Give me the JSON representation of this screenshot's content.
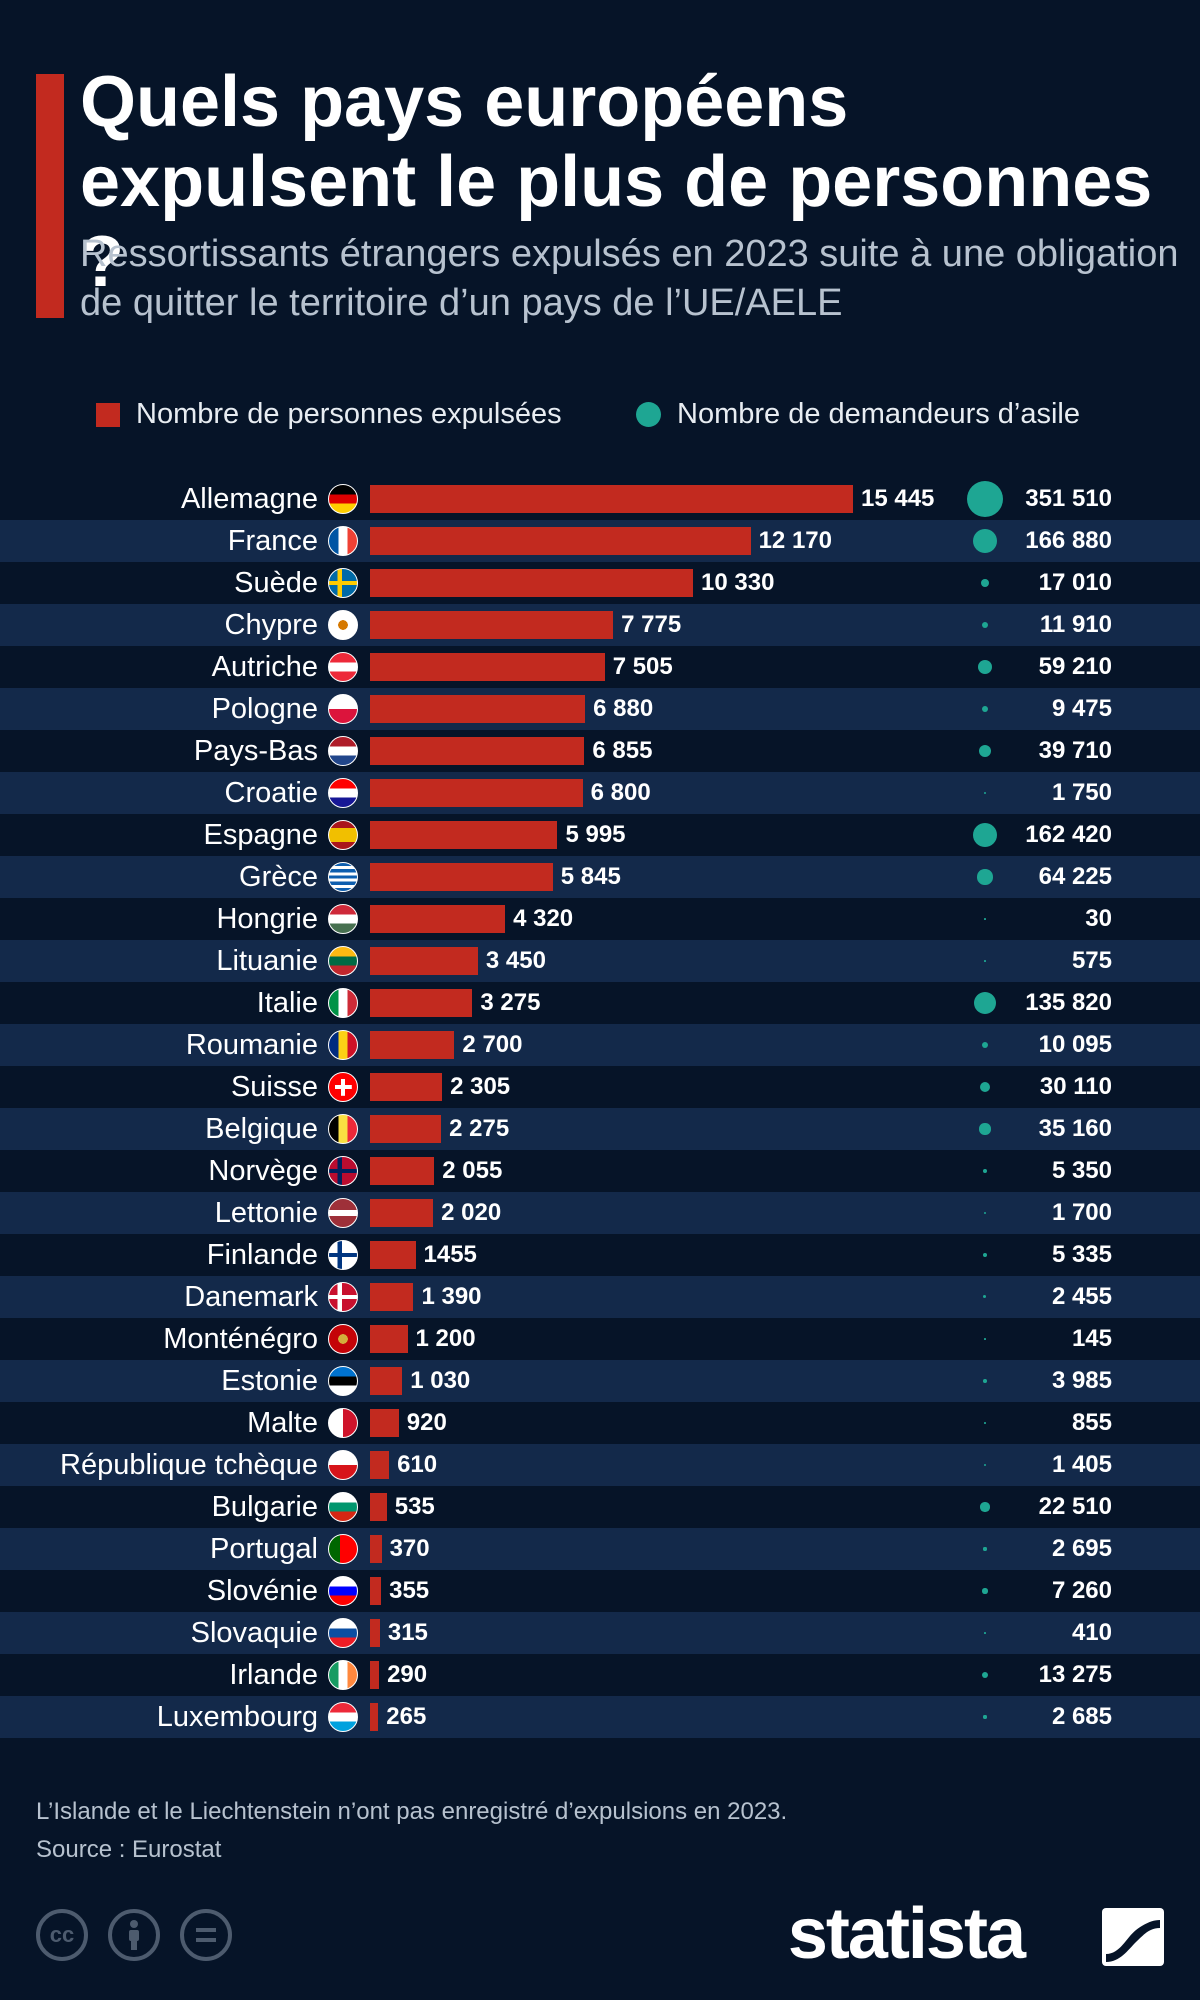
{
  "header": {
    "title": "Quels pays européens expulsent le plus de personnes ?",
    "subtitle": "Ressortissants étrangers expulsés en 2023 suite à une obligation de quitter le territoire d’un pays de l’UE/AELE"
  },
  "colors": {
    "background": "#061428",
    "bar": "#c22a1f",
    "bubble": "#1ea693",
    "row_alt": "#13294a"
  },
  "chart_data": {
    "type": "bar",
    "orientation": "horizontal",
    "title": "Quels pays européens expulsent le plus de personnes ?",
    "subtitle": "Ressortissants étrangers expulsés en 2023 suite à une obligation de quitter le territoire d’un pays de l’UE/AELE",
    "grid": false,
    "legend_position": "top",
    "series": [
      {
        "name": "Nombre de personnes expulsées",
        "mark": "bar",
        "color": "#c22a1f",
        "values": [
          15445,
          12170,
          10330,
          7775,
          7505,
          6880,
          6855,
          6800,
          5995,
          5845,
          4320,
          3450,
          3275,
          2700,
          2305,
          2275,
          2055,
          2020,
          1455,
          1390,
          1200,
          1030,
          920,
          610,
          535,
          370,
          355,
          315,
          290,
          265
        ]
      },
      {
        "name": "Nombre de demandeurs d’asile",
        "mark": "bubble",
        "color": "#1ea693",
        "values": [
          351510,
          166880,
          17010,
          11910,
          59210,
          9475,
          39710,
          1750,
          162420,
          64225,
          30,
          575,
          135820,
          10095,
          30110,
          35160,
          5350,
          1700,
          5335,
          2455,
          145,
          3985,
          855,
          1405,
          22510,
          2695,
          7260,
          410,
          13275,
          2685
        ]
      }
    ],
    "rows": [
      {
        "country": "Allemagne",
        "flag": "de",
        "expelled": "15 445",
        "asylum": "351 510"
      },
      {
        "country": "France",
        "flag": "fr",
        "expelled": "12 170",
        "asylum": "166 880"
      },
      {
        "country": "Suède",
        "flag": "se",
        "expelled": "10 330",
        "asylum": "17 010"
      },
      {
        "country": "Chypre",
        "flag": "cy",
        "expelled": "7 775",
        "asylum": "11 910"
      },
      {
        "country": "Autriche",
        "flag": "at",
        "expelled": "7 505",
        "asylum": "59 210"
      },
      {
        "country": "Pologne",
        "flag": "pl",
        "expelled": "6 880",
        "asylum": "9 475"
      },
      {
        "country": "Pays-Bas",
        "flag": "nl",
        "expelled": "6 855",
        "asylum": "39 710"
      },
      {
        "country": "Croatie",
        "flag": "hr",
        "expelled": "6 800",
        "asylum": "1 750"
      },
      {
        "country": "Espagne",
        "flag": "es",
        "expelled": "5 995",
        "asylum": "162 420"
      },
      {
        "country": "Grèce",
        "flag": "gr",
        "expelled": "5 845",
        "asylum": "64 225"
      },
      {
        "country": "Hongrie",
        "flag": "hu",
        "expelled": "4 320",
        "asylum": "30"
      },
      {
        "country": "Lituanie",
        "flag": "lt",
        "expelled": "3 450",
        "asylum": "575"
      },
      {
        "country": "Italie",
        "flag": "it",
        "expelled": "3 275",
        "asylum": "135 820"
      },
      {
        "country": "Roumanie",
        "flag": "ro",
        "expelled": "2 700",
        "asylum": "10 095"
      },
      {
        "country": "Suisse",
        "flag": "ch",
        "expelled": "2 305",
        "asylum": "30 110"
      },
      {
        "country": "Belgique",
        "flag": "be",
        "expelled": "2 275",
        "asylum": "35 160"
      },
      {
        "country": "Norvège",
        "flag": "no",
        "expelled": "2 055",
        "asylum": "5 350"
      },
      {
        "country": "Lettonie",
        "flag": "lv",
        "expelled": "2 020",
        "asylum": "1 700"
      },
      {
        "country": "Finlande",
        "flag": "fi",
        "expelled": "1455",
        "asylum": "5 335"
      },
      {
        "country": "Danemark",
        "flag": "dk",
        "expelled": "1 390",
        "asylum": "2 455"
      },
      {
        "country": "Monténégro",
        "flag": "me",
        "expelled": "1 200",
        "asylum": "145"
      },
      {
        "country": "Estonie",
        "flag": "ee",
        "expelled": "1 030",
        "asylum": "3 985"
      },
      {
        "country": "Malte",
        "flag": "mt",
        "expelled": "920",
        "asylum": "855"
      },
      {
        "country": "République tchèque",
        "flag": "cz",
        "expelled": "610",
        "asylum": "1 405"
      },
      {
        "country": "Bulgarie",
        "flag": "bg",
        "expelled": "535",
        "asylum": "22 510"
      },
      {
        "country": "Portugal",
        "flag": "pt",
        "expelled": "370",
        "asylum": "2 695"
      },
      {
        "country": "Slovénie",
        "flag": "si",
        "expelled": "355",
        "asylum": "7 260"
      },
      {
        "country": "Slovaquie",
        "flag": "sk",
        "expelled": "315",
        "asylum": "410"
      },
      {
        "country": "Irlande",
        "flag": "ie",
        "expelled": "290",
        "asylum": "13 275"
      },
      {
        "country": "Luxembourg",
        "flag": "lu",
        "expelled": "265",
        "asylum": "2 685"
      }
    ]
  },
  "footer": {
    "note": "L’Islande et le Liechtenstein n’ont pas enregistré d’expulsions en 2023.",
    "source": "Source : Eurostat",
    "brand": "statista",
    "license_icons": [
      "cc-icon",
      "attribution-icon",
      "no-derivatives-icon"
    ]
  }
}
